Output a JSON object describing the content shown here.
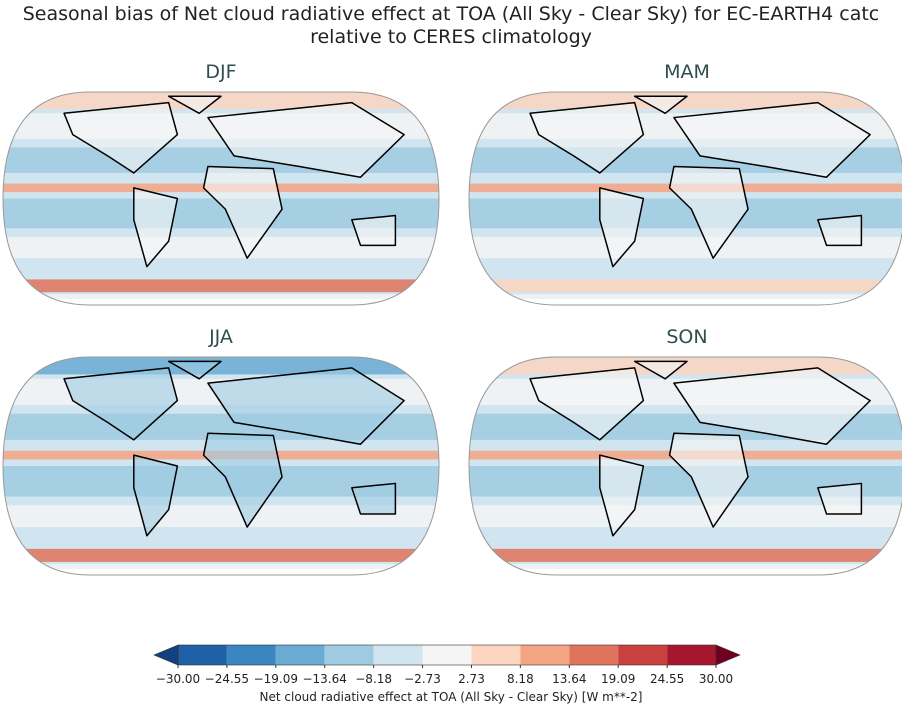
{
  "title": [
    "Seasonal bias of Net cloud radiative effect at TOA (All Sky - Clear Sky) for EC-EARTH4 catc",
    "relative to CERES climatology"
  ],
  "panels": [
    {
      "title": "DJF"
    },
    {
      "title": "MAM"
    },
    {
      "title": "JJA"
    },
    {
      "title": "SON"
    }
  ],
  "colorbar": {
    "label": "Net cloud radiative effect at TOA (All Sky - Clear Sky) [W m**-2]",
    "range": [
      -30,
      30
    ],
    "ticks": [
      {
        "value": -30,
        "label": "−30.00"
      },
      {
        "value": -24.55,
        "label": "−24.55"
      },
      {
        "value": -19.09,
        "label": "−19.09"
      },
      {
        "value": -13.64,
        "label": "−13.64"
      },
      {
        "value": -8.18,
        "label": "−8.18"
      },
      {
        "value": -2.73,
        "label": "−2.73"
      },
      {
        "value": 2.73,
        "label": "2.73"
      },
      {
        "value": 8.18,
        "label": "8.18"
      },
      {
        "value": 13.64,
        "label": "13.64"
      },
      {
        "value": 19.09,
        "label": "19.09"
      },
      {
        "value": 24.55,
        "label": "24.55"
      },
      {
        "value": 30,
        "label": "30.00"
      }
    ],
    "colors": [
      "#1f5fa6",
      "#3a86c0",
      "#6aabd4",
      "#9fcbe2",
      "#d1e5f0",
      "#f5f5f5",
      "#fbd5c0",
      "#f4a583",
      "#e0735b",
      "#c9413e",
      "#a6172d"
    ],
    "under_color": "#114180",
    "over_color": "#6f0020"
  }
}
